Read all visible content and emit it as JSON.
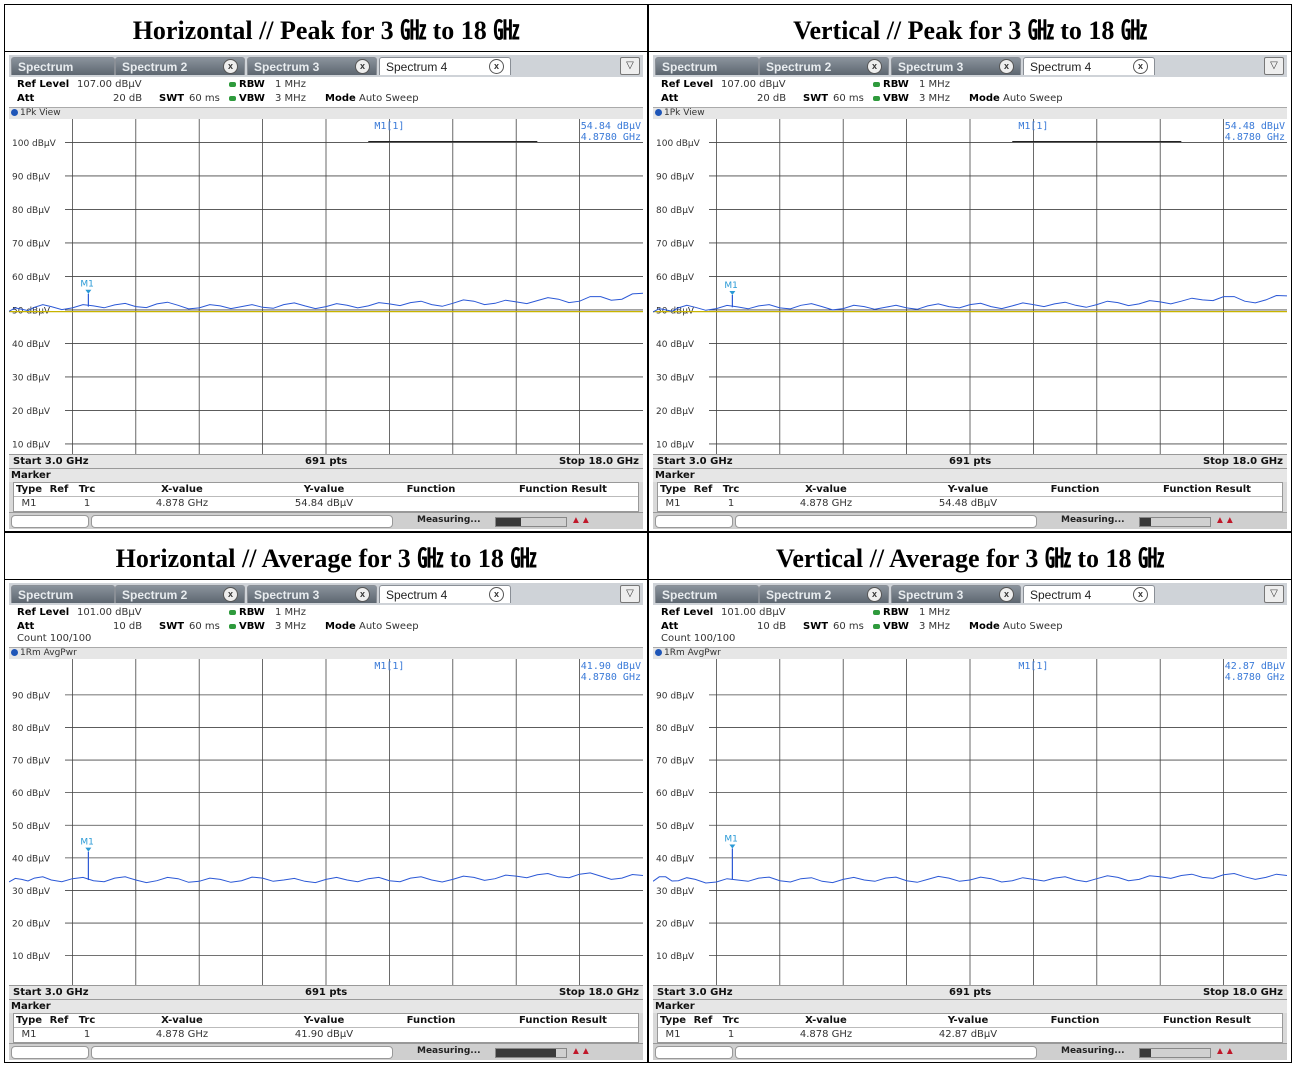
{
  "panels": [
    {
      "heading": "Horizontal // Peak for 3 ㎓ to 18 ㎓",
      "tabs": [
        "Spectrum",
        "Spectrum 2",
        "Spectrum 3",
        "Spectrum 4"
      ],
      "settings": {
        "ref_level_label": "Ref Level",
        "ref_level_value": "107.00 dBμV",
        "att_label": "Att",
        "att_value": "20 dB",
        "swt_label": "SWT",
        "swt_value": "60 ms",
        "rbw_label": "RBW",
        "rbw_value": "1 MHz",
        "vbw_label": "VBW",
        "vbw_value": "3 MHz",
        "mode_label": "Mode",
        "mode_value": "Auto Sweep",
        "count": ""
      },
      "view_label": "1Pk View",
      "marker_readout": {
        "name": "M1[1]",
        "level": "54.84 dBμV",
        "freq": "4.8780 GHz"
      },
      "axis": {
        "start": "Start 3.0 GHz",
        "pts": "691 pts",
        "stop": "Stop 18.0 GHz"
      },
      "marker_table": {
        "title": "Marker",
        "headers": [
          "Type",
          "Ref",
          "Trc",
          "X-value",
          "Y-value",
          "Function",
          "Function Result"
        ],
        "row": {
          "type": "M1",
          "ref": "",
          "trc": "1",
          "x": "4.878 GHz",
          "y": "54.84 dBμV",
          "function": "",
          "result": ""
        }
      },
      "status": {
        "measuring": "Measuring...",
        "progress": 0.35
      },
      "chart_data": {
        "type": "line",
        "y_tick_labels": [
          "100 dBμV",
          "90 dBμV",
          "80 dBμV",
          "70 dBμV",
          "60 dBμV",
          "50 dBμV",
          "40 dBμV",
          "30 dBμV",
          "20 dBμV",
          "10 dBμV"
        ],
        "y_ticks": [
          100,
          90,
          80,
          70,
          60,
          50,
          40,
          30,
          20,
          10
        ],
        "ylim": [
          7,
          107
        ],
        "xlim": [
          3.0,
          18.0
        ],
        "grid": true,
        "threshold_line": 49.5,
        "display_line": 100,
        "marker": {
          "label": "M1",
          "x": 4.878,
          "y": 54.84
        },
        "series": [
          {
            "x": [
              3.0,
              3.3,
              3.6,
              4.0,
              4.5,
              5.0,
              5.5,
              6.0,
              6.5,
              7.0,
              7.5,
              8.0,
              8.5,
              9.0,
              9.5,
              10.0,
              10.5,
              11.0,
              11.5,
              12.0,
              12.5,
              13.0,
              13.5,
              14.0,
              14.5,
              15.0,
              15.5,
              16.0,
              16.5,
              17.0,
              17.5,
              18.0
            ],
            "y": [
              49.6,
              50.2,
              50.8,
              51.0,
              50.6,
              51.2,
              51.5,
              51.0,
              51.8,
              51.4,
              50.6,
              51.2,
              51.0,
              50.8,
              51.6,
              51.2,
              51.0,
              51.4,
              51.2,
              51.8,
              52.2,
              51.6,
              52.0,
              52.6,
              52.0,
              52.4,
              52.8,
              53.2,
              52.6,
              54.0,
              53.2,
              55.0
            ]
          }
        ]
      }
    },
    {
      "heading": "Vertical // Peak for 3 ㎓ to 18 ㎓",
      "tabs": [
        "Spectrum",
        "Spectrum 2",
        "Spectrum 3",
        "Spectrum 4"
      ],
      "settings": {
        "ref_level_label": "Ref Level",
        "ref_level_value": "107.00 dBμV",
        "att_label": "Att",
        "att_value": "20 dB",
        "swt_label": "SWT",
        "swt_value": "60 ms",
        "rbw_label": "RBW",
        "rbw_value": "1 MHz",
        "vbw_label": "VBW",
        "vbw_value": "3 MHz",
        "mode_label": "Mode",
        "mode_value": "Auto Sweep",
        "count": ""
      },
      "view_label": "1Pk View",
      "marker_readout": {
        "name": "M1[1]",
        "level": "54.48 dBμV",
        "freq": "4.8780 GHz"
      },
      "axis": {
        "start": "Start 3.0 GHz",
        "pts": "691 pts",
        "stop": "Stop 18.0 GHz"
      },
      "marker_table": {
        "title": "Marker",
        "headers": [
          "Type",
          "Ref",
          "Trc",
          "X-value",
          "Y-value",
          "Function",
          "Function Result"
        ],
        "row": {
          "type": "M1",
          "ref": "",
          "trc": "1",
          "x": "4.878 GHz",
          "y": "54.48 dBμV",
          "function": "",
          "result": ""
        }
      },
      "status": {
        "measuring": "Measuring...",
        "progress": 0.15
      },
      "chart_data": {
        "type": "line",
        "y_tick_labels": [
          "100 dBμV",
          "90 dBμV",
          "80 dBμV",
          "70 dBμV",
          "60 dBμV",
          "50 dBμV",
          "40 dBμV",
          "30 dBμV",
          "20 dBμV",
          "10 dBμV"
        ],
        "y_ticks": [
          100,
          90,
          80,
          70,
          60,
          50,
          40,
          30,
          20,
          10
        ],
        "ylim": [
          7,
          107
        ],
        "xlim": [
          3.0,
          18.0
        ],
        "grid": true,
        "threshold_line": 49.5,
        "display_line": 100,
        "marker": {
          "label": "M1",
          "x": 4.878,
          "y": 54.48
        },
        "series": [
          {
            "x": [
              3.0,
              3.3,
              3.6,
              4.0,
              4.5,
              5.0,
              5.5,
              6.0,
              6.5,
              7.0,
              7.5,
              8.0,
              8.5,
              9.0,
              9.5,
              10.0,
              10.5,
              11.0,
              11.5,
              12.0,
              12.5,
              13.0,
              13.5,
              14.0,
              14.5,
              15.0,
              15.5,
              16.0,
              16.5,
              17.0,
              17.5,
              18.0
            ],
            "y": [
              49.4,
              50.0,
              50.6,
              50.8,
              50.4,
              50.9,
              51.2,
              50.6,
              51.4,
              51.0,
              50.4,
              51.0,
              50.8,
              50.6,
              51.2,
              51.0,
              51.6,
              51.0,
              51.2,
              51.6,
              51.8,
              51.4,
              51.6,
              52.2,
              51.8,
              52.4,
              52.6,
              53.0,
              54.0,
              52.6,
              53.0,
              54.2
            ]
          }
        ]
      }
    },
    {
      "heading": "Horizontal // Average for 3 ㎓ to 18 ㎓",
      "tabs": [
        "Spectrum",
        "Spectrum 2",
        "Spectrum 3",
        "Spectrum 4"
      ],
      "settings": {
        "ref_level_label": "Ref Level",
        "ref_level_value": "101.00 dBμV",
        "att_label": "Att",
        "att_value": "10 dB",
        "swt_label": "SWT",
        "swt_value": "60 ms",
        "rbw_label": "RBW",
        "rbw_value": "1 MHz",
        "vbw_label": "VBW",
        "vbw_value": "3 MHz",
        "mode_label": "Mode",
        "mode_value": "Auto Sweep",
        "count": "Count 100/100"
      },
      "view_label": "1Rm AvgPwr",
      "marker_readout": {
        "name": "M1[1]",
        "level": "41.90 dBμV",
        "freq": "4.8780 GHz"
      },
      "axis": {
        "start": "Start 3.0 GHz",
        "pts": "691 pts",
        "stop": "Stop 18.0 GHz"
      },
      "marker_table": {
        "title": "Marker",
        "headers": [
          "Type",
          "Ref",
          "Trc",
          "X-value",
          "Y-value",
          "Function",
          "Function Result"
        ],
        "row": {
          "type": "M1",
          "ref": "",
          "trc": "1",
          "x": "4.878 GHz",
          "y": "41.90 dBμV",
          "function": "",
          "result": ""
        }
      },
      "status": {
        "measuring": "Measuring...",
        "progress": 0.85
      },
      "chart_data": {
        "type": "line",
        "y_tick_labels": [
          "90 dBμV",
          "80 dBμV",
          "70 dBμV",
          "60 dBμV",
          "50 dBμV",
          "40 dBμV",
          "30 dBμV",
          "20 dBμV",
          "10 dBμV"
        ],
        "y_ticks": [
          90,
          80,
          70,
          60,
          50,
          40,
          30,
          20,
          10
        ],
        "ylim": [
          1,
          101
        ],
        "xlim": [
          3.0,
          18.0
        ],
        "grid": true,
        "threshold_line": null,
        "display_line": null,
        "marker": {
          "label": "M1",
          "x": 4.878,
          "y": 41.9
        },
        "series": [
          {
            "x": [
              3.0,
              3.3,
              3.6,
              4.0,
              4.5,
              5.0,
              5.5,
              6.0,
              6.5,
              7.0,
              7.5,
              8.0,
              8.5,
              9.0,
              9.5,
              10.0,
              10.5,
              11.0,
              11.5,
              12.0,
              12.5,
              13.0,
              13.5,
              14.0,
              14.5,
              15.0,
              15.5,
              16.0,
              16.5,
              17.0,
              17.5,
              18.0
            ],
            "y": [
              32.6,
              33.4,
              33.8,
              33.2,
              33.6,
              33.0,
              33.8,
              33.2,
              33.0,
              33.6,
              32.8,
              33.4,
              33.0,
              33.8,
              33.2,
              32.8,
              33.4,
              33.2,
              33.6,
              33.0,
              33.8,
              33.2,
              33.4,
              34.0,
              33.6,
              34.4,
              34.8,
              34.2,
              35.0,
              34.4,
              33.8,
              34.6
            ]
          }
        ]
      }
    },
    {
      "heading": "Vertical // Average for 3 ㎓ to 18 ㎓",
      "tabs": [
        "Spectrum",
        "Spectrum 2",
        "Spectrum 3",
        "Spectrum 4"
      ],
      "settings": {
        "ref_level_label": "Ref Level",
        "ref_level_value": "101.00 dBμV",
        "att_label": "Att",
        "att_value": "10 dB",
        "swt_label": "SWT",
        "swt_value": "60 ms",
        "rbw_label": "RBW",
        "rbw_value": "1 MHz",
        "vbw_label": "VBW",
        "vbw_value": "3 MHz",
        "mode_label": "Mode",
        "mode_value": "Auto Sweep",
        "count": "Count 100/100"
      },
      "view_label": "1Rm AvgPwr",
      "marker_readout": {
        "name": "M1[1]",
        "level": "42.87 dBμV",
        "freq": "4.8780 GHz"
      },
      "axis": {
        "start": "Start 3.0 GHz",
        "pts": "691 pts",
        "stop": "Stop 18.0 GHz"
      },
      "marker_table": {
        "title": "Marker",
        "headers": [
          "Type",
          "Ref",
          "Trc",
          "X-value",
          "Y-value",
          "Function",
          "Function Result"
        ],
        "row": {
          "type": "M1",
          "ref": "",
          "trc": "1",
          "x": "4.878 GHz",
          "y": "42.87 dBμV",
          "function": "",
          "result": ""
        }
      },
      "status": {
        "measuring": "Measuring...",
        "progress": 0.15
      },
      "chart_data": {
        "type": "line",
        "y_tick_labels": [
          "90 dBμV",
          "80 dBμV",
          "70 dBμV",
          "60 dBμV",
          "50 dBμV",
          "40 dBμV",
          "30 dBμV",
          "20 dBμV",
          "10 dBμV"
        ],
        "y_ticks": [
          90,
          80,
          70,
          60,
          50,
          40,
          30,
          20,
          10
        ],
        "ylim": [
          1,
          101
        ],
        "xlim": [
          3.0,
          18.0
        ],
        "grid": true,
        "threshold_line": null,
        "display_line": null,
        "marker": {
          "label": "M1",
          "x": 4.878,
          "y": 42.87
        },
        "series": [
          {
            "x": [
              3.0,
              3.3,
              3.6,
              4.0,
              4.5,
              5.0,
              5.5,
              6.0,
              6.5,
              7.0,
              7.5,
              8.0,
              8.5,
              9.0,
              9.5,
              10.0,
              10.5,
              11.0,
              11.5,
              12.0,
              12.5,
              13.0,
              13.5,
              14.0,
              14.5,
              15.0,
              15.5,
              16.0,
              16.5,
              17.0,
              17.5,
              18.0
            ],
            "y": [
              32.8,
              34.2,
              33.0,
              33.4,
              32.6,
              33.2,
              33.8,
              33.0,
              33.6,
              32.8,
              33.4,
              33.2,
              33.8,
              33.0,
              33.4,
              33.8,
              33.2,
              33.6,
              33.0,
              33.4,
              33.8,
              33.2,
              33.6,
              34.0,
              33.4,
              34.2,
              34.6,
              34.0,
              34.8,
              34.2,
              34.0,
              34.6
            ]
          }
        ]
      }
    }
  ]
}
